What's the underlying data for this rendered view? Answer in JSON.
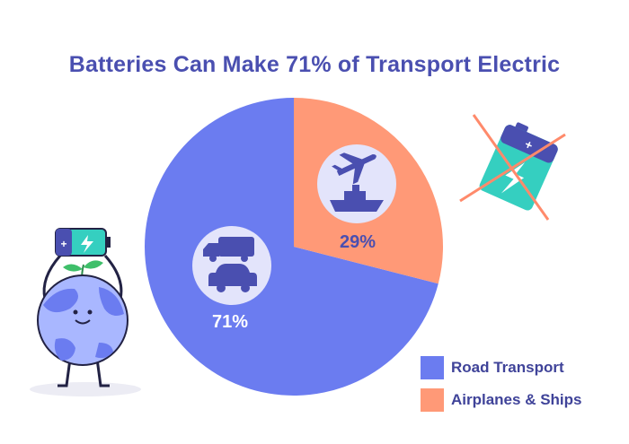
{
  "title": "Batteries Can Make 71% of Transport Electric",
  "chart_data": {
    "type": "pie",
    "title": "Batteries Can Make 71% of Transport Electric",
    "categories": [
      "Road Transport",
      "Airplanes & Ships"
    ],
    "values": [
      71,
      29
    ],
    "data_labels": [
      "71%",
      "29%"
    ],
    "colors": [
      "#6b7cf0",
      "#ff9977"
    ],
    "legend_position": "bottom-right"
  },
  "legend": [
    {
      "label": "Road Transport",
      "color": "#6b7cf0"
    },
    {
      "label": "Airplanes & Ships",
      "color": "#ff9977"
    }
  ],
  "battery_badge": "+"
}
